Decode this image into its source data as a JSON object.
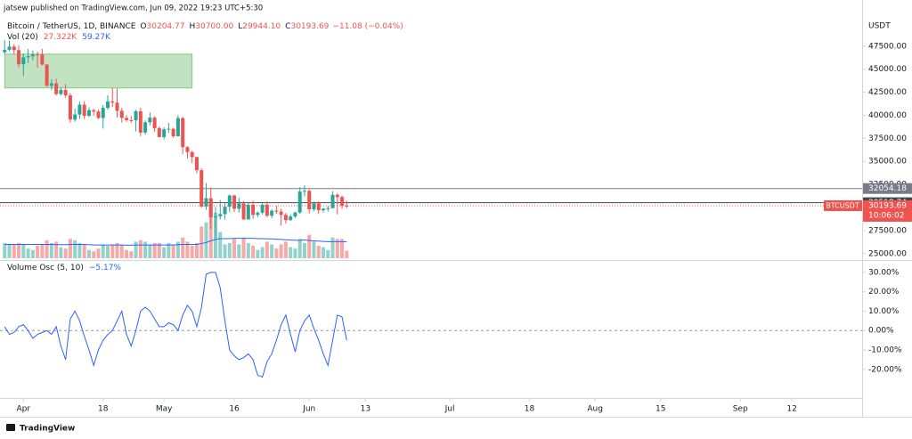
{
  "header": {
    "publisher": "jatsew published on TradingView.com, Jun 09, 2022 19:23 UTC+5:30",
    "footer": "TradingView"
  },
  "chart_data": {
    "type": "candlestick",
    "symbol": "Bitcoin / TetherUS, 1D, BINANCE",
    "legend": {
      "labels": [
        "O",
        "H",
        "L",
        "C"
      ],
      "values": [
        "30204.77",
        "30700.00",
        "29944.10",
        "30193.69"
      ],
      "change": "−11.08 (−0.04%)"
    },
    "volume_title": "Vol (20)",
    "volume_labels": [
      "27.322K",
      "59.27K"
    ],
    "axis_unit": "USDT",
    "ticker": "BTCUSDT",
    "countdown": "10:06:02",
    "up_color": "#26a69a",
    "down_color": "#ef5350",
    "x": [
      "Mar 28",
      "Mar 29",
      "Mar 30",
      "Mar 31",
      "Apr 1",
      "Apr 2",
      "Apr 3",
      "Apr 4",
      "Apr 5",
      "Apr 6",
      "Apr 7",
      "Apr 8",
      "Apr 9",
      "Apr 10",
      "Apr 11",
      "Apr 12",
      "Apr 13",
      "Apr 14",
      "Apr 15",
      "Apr 16",
      "Apr 17",
      "Apr 18",
      "Apr 19",
      "Apr 20",
      "Apr 21",
      "Apr 22",
      "Apr 23",
      "Apr 24",
      "Apr 25",
      "Apr 26",
      "Apr 27",
      "Apr 28",
      "Apr 29",
      "Apr 30",
      "May 1",
      "May 2",
      "May 3",
      "May 4",
      "May 5",
      "May 6",
      "May 7",
      "May 8",
      "May 9",
      "May 10",
      "May 11",
      "May 12",
      "May 13",
      "May 14",
      "May 15",
      "May 16",
      "May 17",
      "May 18",
      "May 19",
      "May 20",
      "May 21",
      "May 22",
      "May 23",
      "May 24",
      "May 25",
      "May 26",
      "May 27",
      "May 28",
      "May 29",
      "May 30",
      "May 31",
      "Jun 1",
      "Jun 2",
      "Jun 3",
      "Jun 4",
      "Jun 5",
      "Jun 6",
      "Jun 7",
      "Jun 8",
      "Jun 9"
    ],
    "open": [
      46830,
      47100,
      47450,
      47060,
      45530,
      46280,
      46400,
      46600,
      46580,
      45500,
      43200,
      43450,
      42300,
      42750,
      42160,
      39530,
      40080,
      41150,
      39940,
      40550,
      40400,
      39700,
      40800,
      41500,
      41370,
      40480,
      39710,
      39470,
      39450,
      40430,
      38120,
      39240,
      39740,
      38600,
      37630,
      38470,
      38530,
      37720,
      39690,
      36550,
      36010,
      35470,
      34040,
      30100,
      31010,
      28940,
      29040,
      29280,
      30080,
      31300,
      29860,
      30430,
      28700,
      30290,
      29190,
      29430,
      30300,
      29100,
      29650,
      29540,
      29200,
      28630,
      29020,
      29450,
      31730,
      31800,
      29800,
      30450,
      29700,
      29860,
      29920,
      31370,
      31120,
      30204.77
    ],
    "high": [
      48150,
      48100,
      47700,
      47600,
      46700,
      47200,
      47000,
      46900,
      47200,
      45550,
      43900,
      43950,
      43000,
      43400,
      42400,
      40700,
      41500,
      41550,
      40850,
      40700,
      40600,
      41100,
      42150,
      42950,
      42900,
      40800,
      40000,
      39900,
      40600,
      40800,
      39450,
      40300,
      39900,
      38800,
      38700,
      39150,
      38650,
      40000,
      39800,
      36650,
      36150,
      35500,
      34250,
      32650,
      32150,
      30050,
      30800,
      30550,
      31400,
      31350,
      31050,
      30700,
      30550,
      30750,
      29600,
      30450,
      30650,
      29800,
      30200,
      29850,
      29400,
      29250,
      29550,
      32200,
      32400,
      31950,
      30650,
      30650,
      29950,
      30150,
      31750,
      31550,
      31300,
      30700
    ],
    "low": [
      46650,
      46950,
      46600,
      45200,
      44250,
      45650,
      45950,
      45150,
      45400,
      43100,
      42750,
      42150,
      42150,
      41900,
      39200,
      39300,
      39600,
      39600,
      39800,
      39950,
      39600,
      38550,
      40600,
      40900,
      39750,
      39200,
      39300,
      39200,
      38250,
      37750,
      37900,
      38900,
      38200,
      37600,
      37400,
      38100,
      37550,
      37700,
      35800,
      35300,
      34800,
      33700,
      30000,
      29750,
      27700,
      26700,
      28700,
      28700,
      29500,
      29500,
      29450,
      28650,
      28700,
      28750,
      28950,
      29250,
      28950,
      28850,
      29300,
      28050,
      28250,
      28550,
      28850,
      29300,
      31200,
      29350,
      29600,
      29300,
      29450,
      29550,
      29900,
      29250,
      29850,
      29944.1
    ],
    "close": [
      47100,
      47450,
      47060,
      45530,
      46280,
      46400,
      46600,
      46580,
      45500,
      43200,
      43450,
      42300,
      42750,
      42160,
      39530,
      40080,
      41150,
      39940,
      40550,
      40400,
      39700,
      40800,
      41500,
      41370,
      40480,
      39710,
      39470,
      39450,
      40430,
      38120,
      39240,
      39740,
      38600,
      37630,
      38470,
      38530,
      37720,
      39690,
      36550,
      36010,
      35470,
      34040,
      30100,
      31010,
      28940,
      29040,
      29280,
      30080,
      31300,
      29860,
      30430,
      28700,
      30290,
      29190,
      29430,
      30300,
      29100,
      29650,
      29540,
      29200,
      28630,
      29020,
      29450,
      31730,
      31800,
      29800,
      30450,
      29700,
      29860,
      29920,
      31370,
      31120,
      30204.77,
      30193.69
    ],
    "volume": [
      55,
      48,
      50,
      55,
      50,
      35,
      30,
      45,
      50,
      65,
      55,
      60,
      40,
      35,
      70,
      65,
      55,
      50,
      30,
      25,
      35,
      50,
      45,
      50,
      55,
      50,
      30,
      25,
      60,
      65,
      60,
      50,
      55,
      55,
      40,
      55,
      50,
      60,
      75,
      60,
      45,
      55,
      115,
      130,
      170,
      165,
      95,
      50,
      55,
      70,
      50,
      75,
      55,
      45,
      30,
      40,
      60,
      50,
      35,
      50,
      60,
      40,
      35,
      70,
      55,
      85,
      60,
      45,
      40,
      30,
      75,
      70,
      70,
      27.322
    ],
    "volume_ma": [
      50,
      50,
      50,
      50,
      50,
      50,
      50,
      50,
      50,
      50,
      50,
      49,
      49,
      49,
      50,
      50,
      50,
      50,
      49,
      48,
      48,
      48,
      48,
      48,
      48,
      48,
      47,
      47,
      48,
      48,
      48,
      48,
      48,
      48,
      48,
      48,
      48,
      49,
      50,
      50,
      50,
      50,
      53,
      57,
      63,
      68,
      71,
      71,
      71,
      72,
      72,
      72,
      72,
      72,
      71,
      71,
      70,
      70,
      69,
      68,
      67,
      66,
      65,
      65,
      66,
      64,
      63,
      62,
      61,
      60,
      60,
      60,
      60,
      59.27
    ],
    "volume_ma_color": "#2962ff",
    "hlines": [
      32054.18,
      30518.74
    ],
    "zone": {
      "from": "Mar 28",
      "to": "May 7",
      "low": 42960,
      "high": 46630,
      "color": "#4caf50"
    },
    "xlim": [
      "Mar 27",
      "Sep 27"
    ],
    "xticks": [
      {
        "value": "Apr 1",
        "label": "Apr"
      },
      {
        "value": "Apr 18",
        "label": "18"
      },
      {
        "value": "May 1",
        "label": "May"
      },
      {
        "value": "May 16",
        "label": "16"
      },
      {
        "value": "Jun 1",
        "label": "Jun"
      },
      {
        "value": "Jun 13",
        "label": "13"
      },
      {
        "value": "Jul 1",
        "label": "Jul"
      },
      {
        "value": "Jul 18",
        "label": "18"
      },
      {
        "value": "Aug 1",
        "label": "Aug"
      },
      {
        "value": "Aug 15",
        "label": "15"
      },
      {
        "value": "Sep 1",
        "label": "Sep"
      },
      {
        "value": "Sep 12",
        "label": "12"
      }
    ],
    "ylim": [
      24300,
      52500
    ],
    "yticks": [
      {
        "value": 25000,
        "label": "25000.00"
      },
      {
        "value": 27500,
        "label": "27500.00"
      },
      {
        "value": 30000,
        "label": "30000.00"
      },
      {
        "value": 32500,
        "label": "32500.00"
      },
      {
        "value": 35000,
        "label": "35000.00"
      },
      {
        "value": 37500,
        "label": "37500.00"
      },
      {
        "value": 40000,
        "label": "40000.00"
      },
      {
        "value": 42500,
        "label": "42500.00"
      },
      {
        "value": 45000,
        "label": "45000.00"
      },
      {
        "value": 47500,
        "label": "47500.00"
      }
    ],
    "oscillator": {
      "type": "line",
      "title": "Volume Osc (5, 10)",
      "value_label": "−5.17%",
      "color": "#2962ff",
      "zero_line": true,
      "values": [
        2,
        -2,
        -1,
        2,
        3,
        0,
        -4,
        -2,
        -1,
        0,
        -2,
        2,
        -8,
        -15,
        6,
        10,
        5,
        -3,
        -10,
        -18,
        -10,
        -5,
        -2,
        0,
        5,
        10,
        -2,
        -8,
        0,
        10,
        12,
        10,
        6,
        2,
        2,
        4,
        3,
        0,
        8,
        13,
        10,
        2,
        12,
        29,
        30,
        30,
        22,
        5,
        -10,
        -13,
        -15,
        -14,
        -12,
        -15,
        -23,
        -24,
        -16,
        -12,
        -5,
        3,
        8,
        -2,
        -11,
        0,
        5,
        8,
        1,
        -5,
        -12,
        -18,
        -5,
        8,
        7,
        -5
      ],
      "ylim": [
        -34.8,
        35.9
      ],
      "yticks": [
        {
          "value": 30,
          "label": "30.00%"
        },
        {
          "value": 20,
          "label": "20.00%"
        },
        {
          "value": 10,
          "label": "10.00%"
        },
        {
          "value": 0,
          "label": "0.00%"
        },
        {
          "value": -10,
          "label": "-10.00%"
        },
        {
          "value": -20,
          "label": "-20.00%"
        }
      ]
    }
  }
}
